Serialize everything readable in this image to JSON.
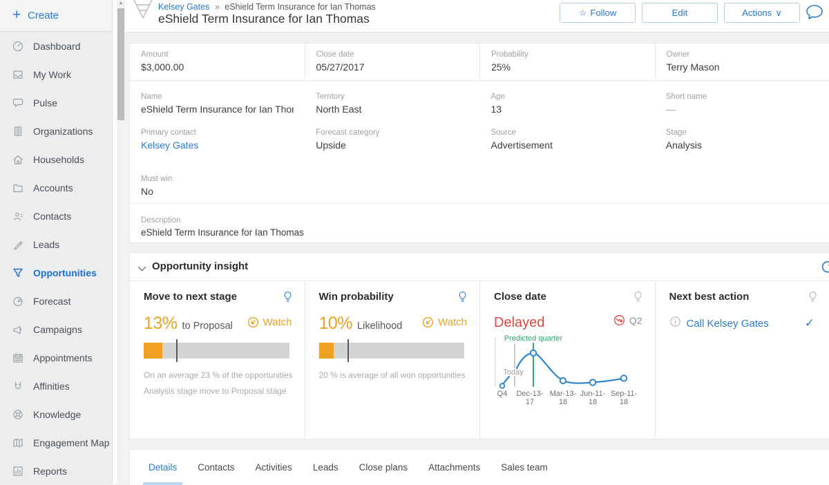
{
  "icons": {
    "plus": "+",
    "scroll_up": "▲",
    "star": "☆",
    "chevron_down": "∨",
    "check": "✓"
  },
  "sidebar": {
    "create_label": "Create",
    "items": [
      {
        "label": "Dashboard"
      },
      {
        "label": "My Work"
      },
      {
        "label": "Pulse"
      },
      {
        "label": "Organizations"
      },
      {
        "label": "Households"
      },
      {
        "label": "Accounts"
      },
      {
        "label": "Contacts"
      },
      {
        "label": "Leads"
      },
      {
        "label": "Opportunities",
        "active": true
      },
      {
        "label": "Forecast"
      },
      {
        "label": "Campaigns"
      },
      {
        "label": "Appointments"
      },
      {
        "label": "Affinities"
      },
      {
        "label": "Knowledge"
      },
      {
        "label": "Engagement Map"
      },
      {
        "label": "Reports"
      }
    ]
  },
  "header": {
    "breadcrumb": {
      "link": "Kelsey Gates",
      "separator": "»",
      "current": "eShield Term Insurance for Ian Thomas"
    },
    "title": "eShield Term Insurance for Ian Thomas",
    "follow_label": "Follow",
    "edit_label": "Edit",
    "actions_label": "Actions"
  },
  "record": {
    "summary": [
      {
        "label": "Amount",
        "value": "$3,000.00"
      },
      {
        "label": "Close date",
        "value": "05/27/2017"
      },
      {
        "label": "Probability",
        "value": "25%"
      },
      {
        "label": "Owner",
        "value": "Terry Mason"
      }
    ],
    "rows": [
      [
        {
          "label": "Name",
          "value": "eShield Term Insurance for Ian Thomas"
        },
        {
          "label": "Territory",
          "value": "North East"
        },
        {
          "label": "Age",
          "value": "13"
        },
        {
          "label": "Short name",
          "value": "—"
        }
      ],
      [
        {
          "label": "Primary contact",
          "value": "Kelsey Gates"
        },
        {
          "label": "Forecast category",
          "value": "Upside"
        },
        {
          "label": "Source",
          "value": "Advertisement"
        },
        {
          "label": "Stage",
          "value": "Analysis"
        }
      ]
    ],
    "must_win": {
      "label": "Must win",
      "value": "No"
    },
    "description": {
      "label": "Description",
      "value": "eShield Term Insurance for Ian Thomas"
    }
  },
  "insight": {
    "title": "Opportunity insight",
    "cards": {
      "move_to_next_stage": {
        "title": "Move to next stage",
        "value": "13%",
        "value_pct": 13,
        "suffix": "to  Proposal",
        "watch_label": "Watch",
        "benchmark_pct": 23,
        "caption_line1": "On an average 23 % of the opportunities in",
        "caption_line2": "Analysis   stage move to Proposal   stage"
      },
      "win_probability": {
        "title": "Win probability",
        "value": "10%",
        "value_pct": 10,
        "suffix": "Likelihood",
        "watch_label": "Watch",
        "benchmark_pct": 20,
        "caption_line1": "20 % is  average of all won opportunities"
      },
      "close_date": {
        "title": "Close date",
        "status": "Delayed",
        "quarter": "Q2",
        "today_label": "Today",
        "predicted_label": "Predicted quarter",
        "x1": [
          "Q4",
          "Dec-13-",
          "Mar-13-",
          "Jun-11-",
          "Sep-11-"
        ],
        "x2": [
          "",
          "17",
          "18",
          "18",
          "18"
        ]
      },
      "next_best_action": {
        "title": "Next best action",
        "action": "Call Kelsey Gates"
      }
    }
  },
  "chart_data": {
    "type": "line",
    "title": "Close date prediction",
    "x": [
      "Q4",
      "Dec-13-17",
      "Mar-13-18",
      "Jun-11-18",
      "Sep-11-18"
    ],
    "values_estimated_relative": [
      0.03,
      0.85,
      0.12,
      0.08,
      0.2
    ],
    "annotations": [
      {
        "label": "Today",
        "type": "vline",
        "position": "between Q4 and Dec-13-17"
      },
      {
        "label": "Predicted quarter",
        "type": "vline",
        "position": "Dec-13-17"
      }
    ],
    "line_color": "#2e86d2",
    "predicted_line_color": "#2fa968",
    "today_line_color": "#b5b7b9",
    "grid": false,
    "legend": "none"
  },
  "colors": {
    "accent_blue": "#2b7ad2",
    "orange": "#f0a125",
    "red": "#e2473e",
    "green": "#2fa968"
  },
  "tabs": {
    "items": [
      "Details",
      "Contacts",
      "Activities",
      "Leads",
      "Close plans",
      "Attachments",
      "Sales team"
    ],
    "active": "Details"
  }
}
